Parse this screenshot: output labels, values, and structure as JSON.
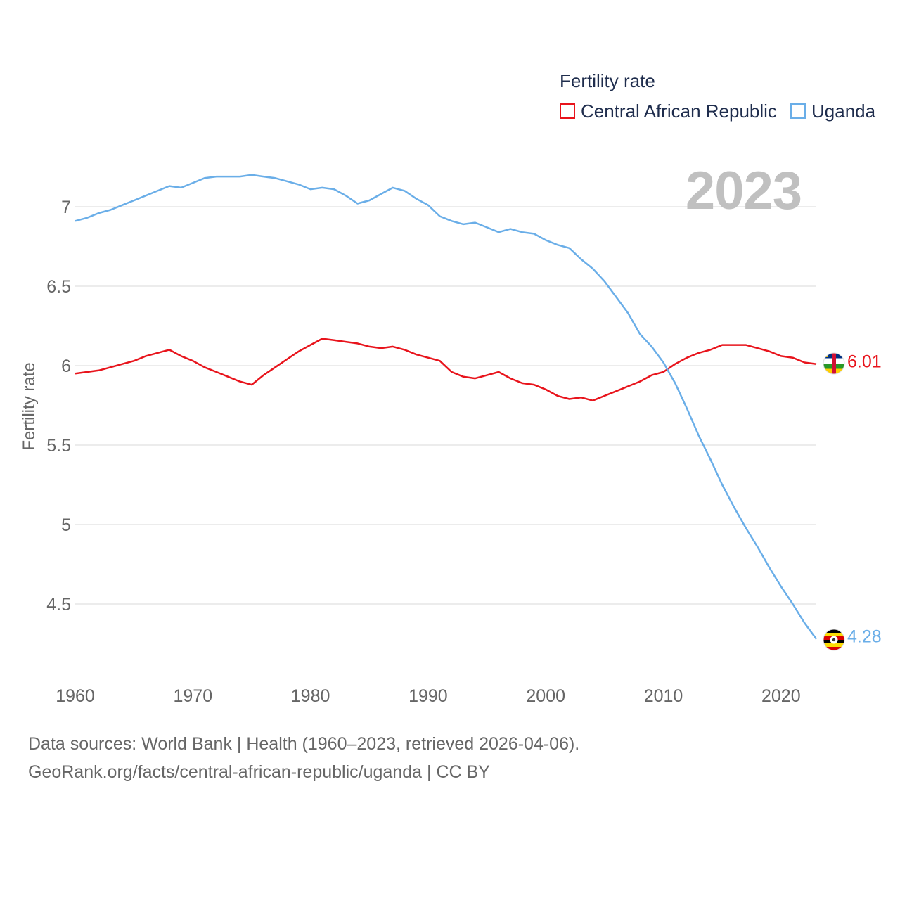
{
  "legend": {
    "title": "Fertility rate"
  },
  "year_badge": "2023",
  "footer": {
    "line1": "Data sources: World Bank | Health (1960–2023, retrieved 2026-04-06).",
    "line2": "GeoRank.org/facts/central-african-republic/uganda | CC BY"
  },
  "chart_data": {
    "type": "line",
    "title": "",
    "xlabel": "",
    "ylabel": "Fertility rate",
    "xlim": [
      1960,
      2023
    ],
    "ylim": [
      4.1,
      7.3
    ],
    "x_ticks": [
      1960,
      1970,
      1980,
      1990,
      2000,
      2010,
      2020
    ],
    "y_ticks": [
      4.5,
      5,
      5.5,
      6,
      6.5,
      7
    ],
    "y_tick_labels": [
      "4.5",
      "5",
      "5.5",
      "6",
      "6.5",
      "7"
    ],
    "x": [
      1960,
      1961,
      1962,
      1963,
      1964,
      1965,
      1966,
      1967,
      1968,
      1969,
      1970,
      1971,
      1972,
      1973,
      1974,
      1975,
      1976,
      1977,
      1978,
      1979,
      1980,
      1981,
      1982,
      1983,
      1984,
      1985,
      1986,
      1987,
      1988,
      1989,
      1990,
      1991,
      1992,
      1993,
      1994,
      1995,
      1996,
      1997,
      1998,
      1999,
      2000,
      2001,
      2002,
      2003,
      2004,
      2005,
      2006,
      2007,
      2008,
      2009,
      2010,
      2011,
      2012,
      2013,
      2014,
      2015,
      2016,
      2017,
      2018,
      2019,
      2020,
      2021,
      2022,
      2023
    ],
    "series": [
      {
        "name": "Central African Republic",
        "color": "#e8141c",
        "end_label": "6.01",
        "flag": "central-african-republic-flag-icon",
        "values": [
          5.95,
          5.96,
          5.97,
          5.99,
          6.01,
          6.03,
          6.06,
          6.08,
          6.1,
          6.06,
          6.03,
          5.99,
          5.96,
          5.93,
          5.9,
          5.88,
          5.94,
          5.99,
          6.04,
          6.09,
          6.13,
          6.17,
          6.16,
          6.15,
          6.14,
          6.12,
          6.11,
          6.12,
          6.1,
          6.07,
          6.05,
          6.03,
          5.96,
          5.93,
          5.92,
          5.94,
          5.96,
          5.92,
          5.89,
          5.88,
          5.85,
          5.81,
          5.79,
          5.8,
          5.78,
          5.81,
          5.84,
          5.87,
          5.9,
          5.94,
          5.96,
          6.01,
          6.05,
          6.08,
          6.1,
          6.13,
          6.13,
          6.13,
          6.11,
          6.09,
          6.06,
          6.05,
          6.02,
          6.01
        ]
      },
      {
        "name": "Uganda",
        "color": "#6aaee8",
        "end_label": "4.28",
        "flag": "uganda-flag-icon",
        "values": [
          6.91,
          6.93,
          6.96,
          6.98,
          7.01,
          7.04,
          7.07,
          7.1,
          7.13,
          7.12,
          7.15,
          7.18,
          7.19,
          7.19,
          7.19,
          7.2,
          7.19,
          7.18,
          7.16,
          7.14,
          7.11,
          7.12,
          7.11,
          7.07,
          7.02,
          7.04,
          7.08,
          7.12,
          7.1,
          7.05,
          7.01,
          6.94,
          6.91,
          6.89,
          6.9,
          6.87,
          6.84,
          6.86,
          6.84,
          6.83,
          6.79,
          6.76,
          6.74,
          6.67,
          6.61,
          6.53,
          6.43,
          6.33,
          6.2,
          6.12,
          6.02,
          5.89,
          5.73,
          5.56,
          5.41,
          5.25,
          5.11,
          4.98,
          4.86,
          4.73,
          4.61,
          4.5,
          4.38,
          4.28
        ]
      }
    ],
    "legend_position": "top-right",
    "grid": true
  }
}
